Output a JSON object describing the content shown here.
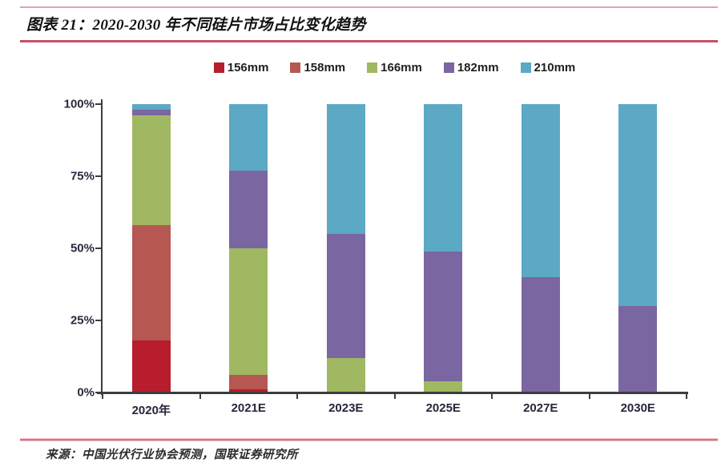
{
  "header": {
    "title": "图表 21：2020-2030 年不同硅片市场占比变化趋势"
  },
  "source": {
    "text": "来源：中国光伏行业协会预测，国联证券研究所"
  },
  "colors": {
    "rule_top": "#e7a0ae",
    "rule_title": "#c64f66",
    "rule_source": "#d87287",
    "axis": "#3d3d3d",
    "axis_label": "#2a2a3e"
  },
  "chart_data": {
    "type": "bar",
    "stacked": true,
    "title": "图表 21：2020-2030 年不同硅片市场占比变化趋势",
    "categories": [
      "2020年",
      "2021E",
      "2023E",
      "2025E",
      "2027E",
      "2030E"
    ],
    "series": [
      {
        "name": "156mm",
        "color": "#b81d2d",
        "values": [
          18,
          1,
          0,
          0,
          0,
          0
        ]
      },
      {
        "name": "158mm",
        "color": "#b65752",
        "values": [
          40,
          5,
          0,
          0,
          0,
          0
        ]
      },
      {
        "name": "166mm",
        "color": "#a0b861",
        "values": [
          38,
          44,
          12,
          4,
          0,
          0
        ]
      },
      {
        "name": "182mm",
        "color": "#7a66a0",
        "values": [
          2,
          27,
          43,
          45,
          40,
          30
        ]
      },
      {
        "name": "210mm",
        "color": "#5ba9c4",
        "values": [
          2,
          23,
          45,
          51,
          60,
          70
        ]
      }
    ],
    "xlabel": "",
    "ylabel": "",
    "y_ticks": [
      "0%",
      "25%",
      "50%",
      "75%",
      "100%"
    ],
    "ylim": [
      0,
      100
    ],
    "grid": false,
    "legend_position": "top"
  }
}
